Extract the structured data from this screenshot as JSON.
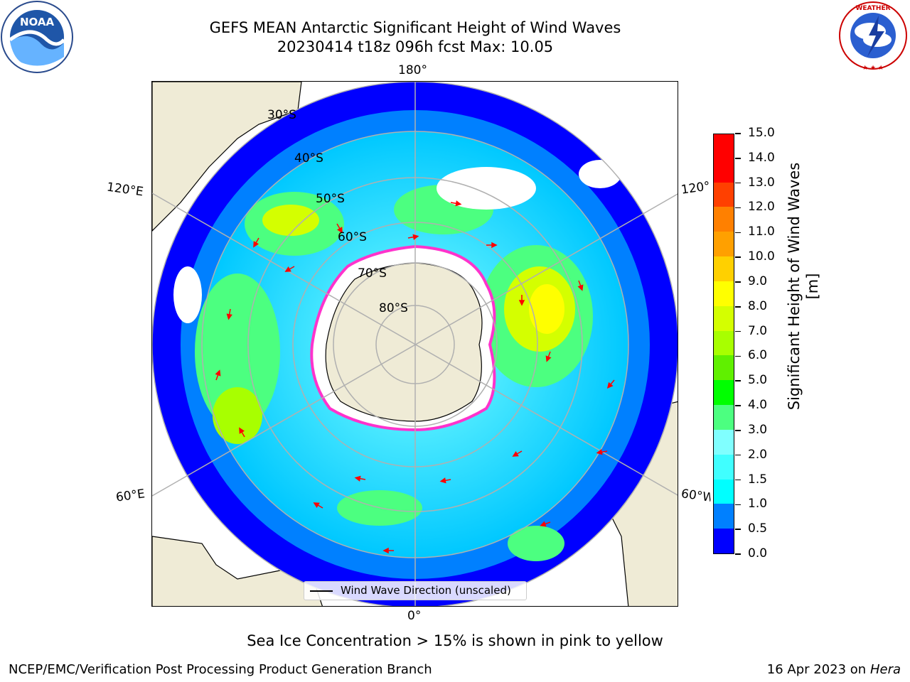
{
  "header": {
    "title_line1": "GEFS MEAN Antarctic Significant Height of Wind Waves",
    "title_line2": "20230414 t18z 096h fcst   Max: 10.05"
  },
  "logos": [
    {
      "name": "noaa-logo",
      "text": "NOAA",
      "ring_text": "NATIONAL OCEANIC AND ATMOSPHERIC ADMINISTRATION · U.S. DEPARTMENT OF COMMERCE"
    },
    {
      "name": "nws-logo",
      "ring_text": "NATIONAL WEATHER SERVICE"
    }
  ],
  "map": {
    "projection": "south-polar-stereographic",
    "longitude_labels": {
      "top": "180°",
      "bottom": "0°",
      "left_upper": "120°E",
      "left_lower": "60°E",
      "right_upper": "120°W",
      "right_lower": "60°W"
    },
    "latitude_labels": [
      "30°S",
      "40°S",
      "50°S",
      "60°S",
      "70°S",
      "80°S"
    ],
    "colors": {
      "land": "#efebd6",
      "gridlines": "#b0b0b0",
      "arrows": "#ff0000",
      "sea_ice_edge": "#ff33cc"
    }
  },
  "colorbar": {
    "title": "Significant Height of Wind Waves [m]",
    "ticks": [
      "0.0",
      "0.5",
      "1.0",
      "1.5",
      "2.0",
      "3.0",
      "4.0",
      "5.0",
      "6.0",
      "7.0",
      "8.0",
      "9.0",
      "10.0",
      "11.0",
      "12.0",
      "13.0",
      "14.0",
      "15.0"
    ],
    "colors": [
      "#0000ff",
      "#0080ff",
      "#00ffff",
      "#40ffff",
      "#80ffff",
      "#4cff80",
      "#00ff00",
      "#60f000",
      "#a8ff00",
      "#d4ff00",
      "#ffff00",
      "#ffd000",
      "#ffa000",
      "#ff8000",
      "#ff4000",
      "#ff0000",
      "#ff0000"
    ]
  },
  "legend": {
    "label": "Wind Wave Direction (unscaled)"
  },
  "note": "Sea Ice Concentration > 15% is shown in pink to yellow",
  "footer": {
    "left": "NCEP/EMC/Verification Post Processing Product Generation Branch",
    "right_date": "16 Apr 2023 on ",
    "right_host": "Hera"
  }
}
